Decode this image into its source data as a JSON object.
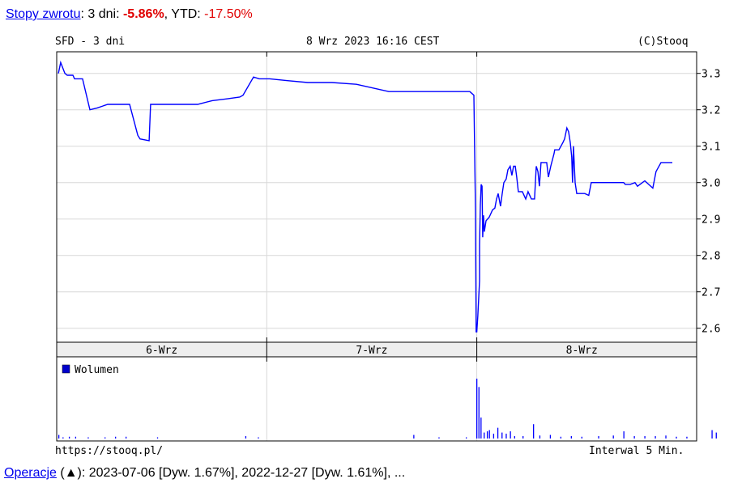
{
  "header": {
    "returns_link": "Stopy zwrotu",
    "period_label": ": 3 dni: ",
    "period_value": "-5.86%",
    "ytd_label": ", YTD: ",
    "ytd_value": "-17.50%"
  },
  "footer": {
    "operations_link": "Operacje",
    "operations_text": " (▲): 2023-07-06 [Dyw. 1.67%], 2022-12-27 [Dyw. 1.61%], ..."
  },
  "chart_data": {
    "type": "line",
    "title": "SFD - 3 dni",
    "date_label": "8 Wrz 2023 16:16 CEST",
    "copyright": "(C)Stooq",
    "source": "https://stooq.pl/",
    "interval": "Interwal 5 Min.",
    "colors": {
      "line": "#0000ff",
      "grid": "#d8d8d8",
      "date_band": "#eeeeee"
    },
    "grid": true,
    "categories": [
      "6-Wrz",
      "7-Wrz",
      "8-Wrz"
    ],
    "ylim": [
      2.58,
      3.37
    ],
    "yticks": [
      2.6,
      2.7,
      2.8,
      2.9,
      3.0,
      3.1,
      3.2,
      3.3
    ],
    "ytick_labels": [
      "2.6",
      "2.7",
      "2.8",
      "2.9",
      "3.0",
      "3.1",
      "3.2",
      "3.3"
    ],
    "x_unit": "day (0-3, 6-Wrz to 8-Wrz)",
    "price": [
      [
        0.008,
        3.3
      ],
      [
        0.019,
        3.33
      ],
      [
        0.039,
        3.3
      ],
      [
        0.05,
        3.295
      ],
      [
        0.077,
        3.295
      ],
      [
        0.085,
        3.285
      ],
      [
        0.123,
        3.285
      ],
      [
        0.158,
        3.2
      ],
      [
        0.193,
        3.205
      ],
      [
        0.243,
        3.215
      ],
      [
        0.347,
        3.215
      ],
      [
        0.386,
        3.13
      ],
      [
        0.397,
        3.12
      ],
      [
        0.44,
        3.115
      ],
      [
        0.447,
        3.215
      ],
      [
        0.671,
        3.215
      ],
      [
        0.74,
        3.225
      ],
      [
        0.81,
        3.23
      ],
      [
        0.871,
        3.235
      ],
      [
        0.887,
        3.24
      ],
      [
        0.937,
        3.29
      ],
      [
        0.964,
        3.285
      ],
      [
        1.014,
        3.285
      ],
      [
        1.099,
        3.28
      ],
      [
        1.195,
        3.275
      ],
      [
        1.311,
        3.275
      ],
      [
        1.427,
        3.27
      ],
      [
        1.581,
        3.25
      ],
      [
        1.967,
        3.25
      ],
      [
        1.986,
        3.24
      ],
      [
        1.994,
        2.92
      ],
      [
        1.997,
        2.59
      ],
      [
        2.0,
        2.59
      ],
      [
        2.005,
        2.635
      ],
      [
        2.013,
        2.73
      ],
      [
        2.013,
        2.83
      ],
      [
        2.017,
        2.94
      ],
      [
        2.021,
        2.995
      ],
      [
        2.025,
        2.99
      ],
      [
        2.028,
        2.85
      ],
      [
        2.032,
        2.91
      ],
      [
        2.036,
        2.865
      ],
      [
        2.044,
        2.895
      ],
      [
        2.059,
        2.905
      ],
      [
        2.075,
        2.925
      ],
      [
        2.086,
        2.93
      ],
      [
        2.094,
        2.955
      ],
      [
        2.102,
        2.97
      ],
      [
        2.113,
        2.935
      ],
      [
        2.121,
        2.97
      ],
      [
        2.129,
        3.0
      ],
      [
        2.14,
        3.01
      ],
      [
        2.148,
        3.035
      ],
      [
        2.159,
        3.045
      ],
      [
        2.167,
        3.02
      ],
      [
        2.175,
        3.045
      ],
      [
        2.183,
        3.045
      ],
      [
        2.19,
        3.015
      ],
      [
        2.198,
        2.975
      ],
      [
        2.217,
        2.975
      ],
      [
        2.233,
        2.955
      ],
      [
        2.244,
        2.975
      ],
      [
        2.26,
        2.955
      ],
      [
        2.275,
        2.955
      ],
      [
        2.283,
        3.045
      ],
      [
        2.291,
        3.03
      ],
      [
        2.298,
        2.99
      ],
      [
        2.306,
        3.055
      ],
      [
        2.321,
        3.055
      ],
      [
        2.333,
        3.055
      ],
      [
        2.341,
        3.015
      ],
      [
        2.352,
        3.045
      ],
      [
        2.368,
        3.08
      ],
      [
        2.371,
        3.09
      ],
      [
        2.391,
        3.09
      ],
      [
        2.41,
        3.11
      ],
      [
        2.418,
        3.12
      ],
      [
        2.429,
        3.15
      ],
      [
        2.437,
        3.14
      ],
      [
        2.445,
        3.11
      ],
      [
        2.452,
        3.07
      ],
      [
        2.456,
        3.0
      ],
      [
        2.46,
        3.1
      ],
      [
        2.468,
        3.0
      ],
      [
        2.476,
        2.97
      ],
      [
        2.491,
        2.97
      ],
      [
        2.503,
        2.97
      ],
      [
        2.514,
        2.97
      ],
      [
        2.533,
        2.965
      ],
      [
        2.545,
        3.0
      ],
      [
        2.699,
        3.0
      ],
      [
        2.707,
        2.995
      ],
      [
        2.73,
        2.995
      ],
      [
        2.753,
        3.0
      ],
      [
        2.765,
        2.99
      ],
      [
        2.8,
        3.005
      ],
      [
        2.838,
        2.985
      ],
      [
        2.853,
        3.03
      ],
      [
        2.877,
        3.055
      ],
      [
        2.931,
        3.055
      ]
    ],
    "volume_legend": "Wolumen",
    "volume_relative": [
      [
        0.01,
        6
      ],
      [
        0.03,
        2
      ],
      [
        0.06,
        3
      ],
      [
        0.09,
        3
      ],
      [
        0.15,
        2
      ],
      [
        0.23,
        2
      ],
      [
        0.28,
        3
      ],
      [
        0.33,
        3
      ],
      [
        0.48,
        2
      ],
      [
        0.9,
        4
      ],
      [
        0.96,
        2
      ],
      [
        1.7,
        6
      ],
      [
        1.82,
        2
      ],
      [
        1.95,
        2
      ],
      [
        2.0,
        100
      ],
      [
        2.01,
        86
      ],
      [
        2.02,
        35
      ],
      [
        2.035,
        10
      ],
      [
        2.05,
        12
      ],
      [
        2.06,
        14
      ],
      [
        2.08,
        8
      ],
      [
        2.1,
        18
      ],
      [
        2.12,
        10
      ],
      [
        2.14,
        8
      ],
      [
        2.16,
        12
      ],
      [
        2.18,
        4
      ],
      [
        2.22,
        4
      ],
      [
        2.27,
        24
      ],
      [
        2.3,
        5
      ],
      [
        2.35,
        6
      ],
      [
        2.4,
        3
      ],
      [
        2.45,
        4
      ],
      [
        2.5,
        3
      ],
      [
        2.58,
        4
      ],
      [
        2.65,
        5
      ],
      [
        2.7,
        12
      ],
      [
        2.75,
        4
      ],
      [
        2.8,
        4
      ],
      [
        2.85,
        4
      ],
      [
        2.9,
        5
      ],
      [
        2.95,
        3
      ],
      [
        3.0,
        3
      ],
      [
        3.12,
        14
      ],
      [
        3.14,
        10
      ]
    ]
  }
}
